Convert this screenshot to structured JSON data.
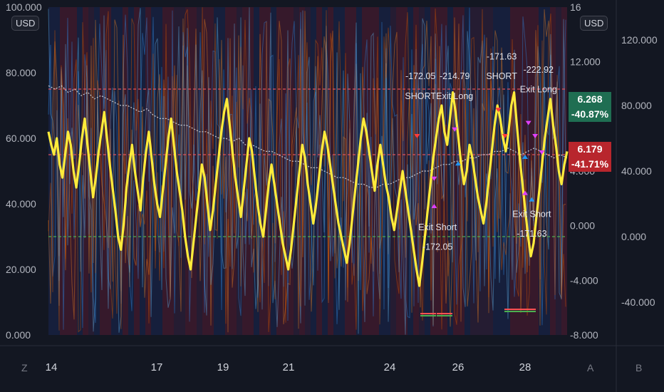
{
  "currency_label": "USD",
  "corner_labels": {
    "left": "Z",
    "right_a": "A",
    "right_b": "B"
  },
  "price_tags": [
    {
      "value": "6.268",
      "change": "-40.87%",
      "color": "#1f6e52"
    },
    {
      "value": "6.179",
      "change": "-41.71%",
      "color": "#b8262d"
    }
  ],
  "chart_data": {
    "type": "line",
    "x_ticks": [
      "14",
      "17",
      "19",
      "21",
      "24",
      "26",
      "28"
    ],
    "y_axis_left": {
      "ticks": [
        "100.000",
        "80.000",
        "60.000",
        "40.000",
        "20.000",
        "0.000"
      ],
      "ylim": [
        0,
        100
      ]
    },
    "y_axis_mid": {
      "ticks": [
        "16",
        "12.000",
        "8.000",
        "4.000",
        "0.000",
        "-4.000",
        "-8.000"
      ],
      "ylim": [
        -8,
        16
      ]
    },
    "y_axis_right": {
      "ticks": [
        "120.000",
        "80.000",
        "40.000",
        "0.000",
        "-40.000"
      ],
      "ylim": [
        -60,
        140
      ]
    },
    "reference_lines": [
      {
        "value": 75,
        "color": "#e0525a"
      },
      {
        "value": 55,
        "color": "#e0525a"
      },
      {
        "value": 30,
        "color": "#4caf50"
      }
    ],
    "series": [
      {
        "values": [
          62,
          58,
          55,
          60,
          52,
          48,
          55,
          62,
          58,
          50,
          45,
          52,
          60,
          66,
          58,
          50,
          42,
          48,
          56,
          62,
          68,
          60,
          52,
          45,
          38,
          30,
          26,
          34,
          45,
          52,
          58,
          50,
          44,
          38,
          48,
          56,
          62,
          54,
          46,
          40,
          36,
          44,
          52,
          60,
          66,
          58,
          50,
          44,
          38,
          30,
          24,
          20,
          28,
          36,
          44,
          52,
          48,
          40,
          32,
          38,
          46,
          54,
          62,
          68,
          72,
          64,
          56,
          48,
          42,
          36,
          44,
          52,
          60,
          56,
          48,
          40,
          34,
          30,
          38,
          46,
          52,
          46,
          40,
          34,
          28,
          24,
          20,
          26,
          34,
          42,
          50,
          58,
          54,
          46,
          40,
          34,
          40,
          48,
          56,
          62,
          58,
          52,
          46,
          40,
          34,
          30,
          26,
          22,
          28,
          36,
          44,
          52,
          60,
          66,
          62,
          56,
          50,
          44,
          52,
          58,
          52,
          46,
          42,
          36,
          32,
          38,
          44,
          50,
          44,
          38,
          32,
          26,
          20,
          15,
          22,
          30,
          38,
          46,
          54,
          60,
          66,
          70,
          62,
          58,
          66,
          74,
          68,
          60,
          52,
          46,
          50,
          58,
          54,
          48,
          42,
          38,
          34,
          40,
          48,
          56,
          64,
          70,
          66,
          60,
          56,
          62,
          70,
          74,
          64,
          54,
          46,
          38,
          30,
          24,
          28,
          36,
          44,
          52,
          60,
          66,
          72,
          64,
          58,
          50,
          46,
          52,
          56
        ],
        "color": "#ffeb3b"
      },
      {
        "values": [
          76,
          75,
          76,
          74,
          75,
          73,
          74,
          72,
          73,
          72,
          71,
          70,
          70,
          69,
          68,
          69,
          67,
          66,
          66,
          65,
          64,
          64,
          63,
          62,
          62,
          61,
          60,
          60,
          59,
          60,
          58,
          58,
          57,
          56,
          56,
          55,
          54,
          53,
          53,
          52,
          51,
          51,
          50,
          49,
          48,
          48,
          47,
          46,
          46,
          45,
          45,
          46,
          46,
          47,
          48,
          48,
          49,
          50,
          50,
          51,
          52,
          52,
          53,
          53,
          54,
          54,
          55,
          55,
          56,
          56,
          57,
          56,
          55,
          56,
          57,
          56,
          55,
          54,
          55,
          54
        ],
        "color": "#c9ccd4"
      }
    ],
    "trade_labels": [
      {
        "text": "-172.05",
        "x": 24.9,
        "y": 78
      },
      {
        "text": "SHORT",
        "x": 24.9,
        "y": 72
      },
      {
        "text": "-214.79",
        "x": 25.9,
        "y": 78
      },
      {
        "text": "Exit Long",
        "x": 25.9,
        "y": 72
      },
      {
        "text": "-171.63",
        "x": 27.3,
        "y": 84
      },
      {
        "text": "SHORT",
        "x": 27.3,
        "y": 78
      },
      {
        "text": "-222.92",
        "x": 28.4,
        "y": 80
      },
      {
        "text": "Exit Long",
        "x": 28.4,
        "y": 74
      },
      {
        "text": "Exit Short",
        "x": 25.4,
        "y": 32
      },
      {
        "text": "-172.05",
        "x": 25.4,
        "y": 26
      },
      {
        "text": "Exit Short",
        "x": 28.2,
        "y": 36
      },
      {
        "text": "-171.63",
        "x": 28.2,
        "y": 30
      }
    ]
  }
}
